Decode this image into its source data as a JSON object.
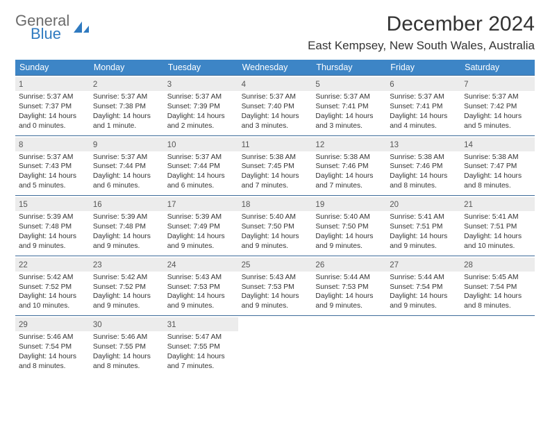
{
  "logo": {
    "line1": "General",
    "line2": "Blue"
  },
  "title": "December 2024",
  "location": "East Kempsey, New South Wales, Australia",
  "colors": {
    "header_bg": "#3d85c6",
    "header_text": "#ffffff",
    "row_border": "#3d6b99",
    "daynum_bg": "#ececec",
    "text": "#333333",
    "logo_gray": "#6b6b6b",
    "logo_blue": "#2f7ac0"
  },
  "font": {
    "family": "Arial",
    "title_size_pt": 22,
    "location_size_pt": 13,
    "dow_size_pt": 9,
    "body_size_pt": 8
  },
  "days_of_week": [
    "Sunday",
    "Monday",
    "Tuesday",
    "Wednesday",
    "Thursday",
    "Friday",
    "Saturday"
  ],
  "column_count": 7,
  "weeks": [
    [
      {
        "n": "1",
        "sr": "Sunrise: 5:37 AM",
        "ss": "Sunset: 7:37 PM",
        "d1": "Daylight: 14 hours",
        "d2": "and 0 minutes."
      },
      {
        "n": "2",
        "sr": "Sunrise: 5:37 AM",
        "ss": "Sunset: 7:38 PM",
        "d1": "Daylight: 14 hours",
        "d2": "and 1 minute."
      },
      {
        "n": "3",
        "sr": "Sunrise: 5:37 AM",
        "ss": "Sunset: 7:39 PM",
        "d1": "Daylight: 14 hours",
        "d2": "and 2 minutes."
      },
      {
        "n": "4",
        "sr": "Sunrise: 5:37 AM",
        "ss": "Sunset: 7:40 PM",
        "d1": "Daylight: 14 hours",
        "d2": "and 3 minutes."
      },
      {
        "n": "5",
        "sr": "Sunrise: 5:37 AM",
        "ss": "Sunset: 7:41 PM",
        "d1": "Daylight: 14 hours",
        "d2": "and 3 minutes."
      },
      {
        "n": "6",
        "sr": "Sunrise: 5:37 AM",
        "ss": "Sunset: 7:41 PM",
        "d1": "Daylight: 14 hours",
        "d2": "and 4 minutes."
      },
      {
        "n": "7",
        "sr": "Sunrise: 5:37 AM",
        "ss": "Sunset: 7:42 PM",
        "d1": "Daylight: 14 hours",
        "d2": "and 5 minutes."
      }
    ],
    [
      {
        "n": "8",
        "sr": "Sunrise: 5:37 AM",
        "ss": "Sunset: 7:43 PM",
        "d1": "Daylight: 14 hours",
        "d2": "and 5 minutes."
      },
      {
        "n": "9",
        "sr": "Sunrise: 5:37 AM",
        "ss": "Sunset: 7:44 PM",
        "d1": "Daylight: 14 hours",
        "d2": "and 6 minutes."
      },
      {
        "n": "10",
        "sr": "Sunrise: 5:37 AM",
        "ss": "Sunset: 7:44 PM",
        "d1": "Daylight: 14 hours",
        "d2": "and 6 minutes."
      },
      {
        "n": "11",
        "sr": "Sunrise: 5:38 AM",
        "ss": "Sunset: 7:45 PM",
        "d1": "Daylight: 14 hours",
        "d2": "and 7 minutes."
      },
      {
        "n": "12",
        "sr": "Sunrise: 5:38 AM",
        "ss": "Sunset: 7:46 PM",
        "d1": "Daylight: 14 hours",
        "d2": "and 7 minutes."
      },
      {
        "n": "13",
        "sr": "Sunrise: 5:38 AM",
        "ss": "Sunset: 7:46 PM",
        "d1": "Daylight: 14 hours",
        "d2": "and 8 minutes."
      },
      {
        "n": "14",
        "sr": "Sunrise: 5:38 AM",
        "ss": "Sunset: 7:47 PM",
        "d1": "Daylight: 14 hours",
        "d2": "and 8 minutes."
      }
    ],
    [
      {
        "n": "15",
        "sr": "Sunrise: 5:39 AM",
        "ss": "Sunset: 7:48 PM",
        "d1": "Daylight: 14 hours",
        "d2": "and 9 minutes."
      },
      {
        "n": "16",
        "sr": "Sunrise: 5:39 AM",
        "ss": "Sunset: 7:48 PM",
        "d1": "Daylight: 14 hours",
        "d2": "and 9 minutes."
      },
      {
        "n": "17",
        "sr": "Sunrise: 5:39 AM",
        "ss": "Sunset: 7:49 PM",
        "d1": "Daylight: 14 hours",
        "d2": "and 9 minutes."
      },
      {
        "n": "18",
        "sr": "Sunrise: 5:40 AM",
        "ss": "Sunset: 7:50 PM",
        "d1": "Daylight: 14 hours",
        "d2": "and 9 minutes."
      },
      {
        "n": "19",
        "sr": "Sunrise: 5:40 AM",
        "ss": "Sunset: 7:50 PM",
        "d1": "Daylight: 14 hours",
        "d2": "and 9 minutes."
      },
      {
        "n": "20",
        "sr": "Sunrise: 5:41 AM",
        "ss": "Sunset: 7:51 PM",
        "d1": "Daylight: 14 hours",
        "d2": "and 9 minutes."
      },
      {
        "n": "21",
        "sr": "Sunrise: 5:41 AM",
        "ss": "Sunset: 7:51 PM",
        "d1": "Daylight: 14 hours",
        "d2": "and 10 minutes."
      }
    ],
    [
      {
        "n": "22",
        "sr": "Sunrise: 5:42 AM",
        "ss": "Sunset: 7:52 PM",
        "d1": "Daylight: 14 hours",
        "d2": "and 10 minutes."
      },
      {
        "n": "23",
        "sr": "Sunrise: 5:42 AM",
        "ss": "Sunset: 7:52 PM",
        "d1": "Daylight: 14 hours",
        "d2": "and 9 minutes."
      },
      {
        "n": "24",
        "sr": "Sunrise: 5:43 AM",
        "ss": "Sunset: 7:53 PM",
        "d1": "Daylight: 14 hours",
        "d2": "and 9 minutes."
      },
      {
        "n": "25",
        "sr": "Sunrise: 5:43 AM",
        "ss": "Sunset: 7:53 PM",
        "d1": "Daylight: 14 hours",
        "d2": "and 9 minutes."
      },
      {
        "n": "26",
        "sr": "Sunrise: 5:44 AM",
        "ss": "Sunset: 7:53 PM",
        "d1": "Daylight: 14 hours",
        "d2": "and 9 minutes."
      },
      {
        "n": "27",
        "sr": "Sunrise: 5:44 AM",
        "ss": "Sunset: 7:54 PM",
        "d1": "Daylight: 14 hours",
        "d2": "and 9 minutes."
      },
      {
        "n": "28",
        "sr": "Sunrise: 5:45 AM",
        "ss": "Sunset: 7:54 PM",
        "d1": "Daylight: 14 hours",
        "d2": "and 8 minutes."
      }
    ],
    [
      {
        "n": "29",
        "sr": "Sunrise: 5:46 AM",
        "ss": "Sunset: 7:54 PM",
        "d1": "Daylight: 14 hours",
        "d2": "and 8 minutes."
      },
      {
        "n": "30",
        "sr": "Sunrise: 5:46 AM",
        "ss": "Sunset: 7:55 PM",
        "d1": "Daylight: 14 hours",
        "d2": "and 8 minutes."
      },
      {
        "n": "31",
        "sr": "Sunrise: 5:47 AM",
        "ss": "Sunset: 7:55 PM",
        "d1": "Daylight: 14 hours",
        "d2": "and 7 minutes."
      },
      null,
      null,
      null,
      null
    ]
  ]
}
